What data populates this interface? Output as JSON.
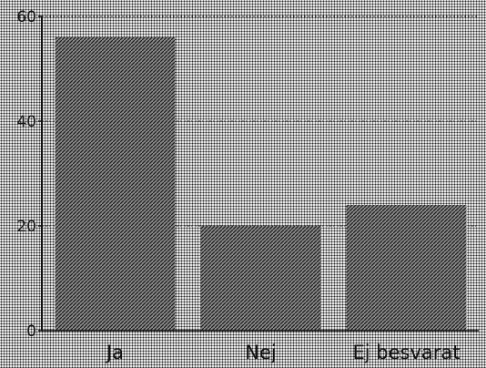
{
  "chart_data": {
    "type": "bar",
    "categories": [
      "Ja",
      "Nej",
      "Ej besvarat"
    ],
    "values": [
      56,
      20,
      24
    ],
    "ylim": [
      0,
      60
    ],
    "yticks": [
      "0",
      "20",
      "40",
      "60"
    ],
    "title": "",
    "xlabel": "",
    "ylabel": "",
    "grid": true,
    "colors": {
      "bar": "#6e6e6e",
      "background": "#e6e6e6",
      "axis": "#111111"
    }
  }
}
